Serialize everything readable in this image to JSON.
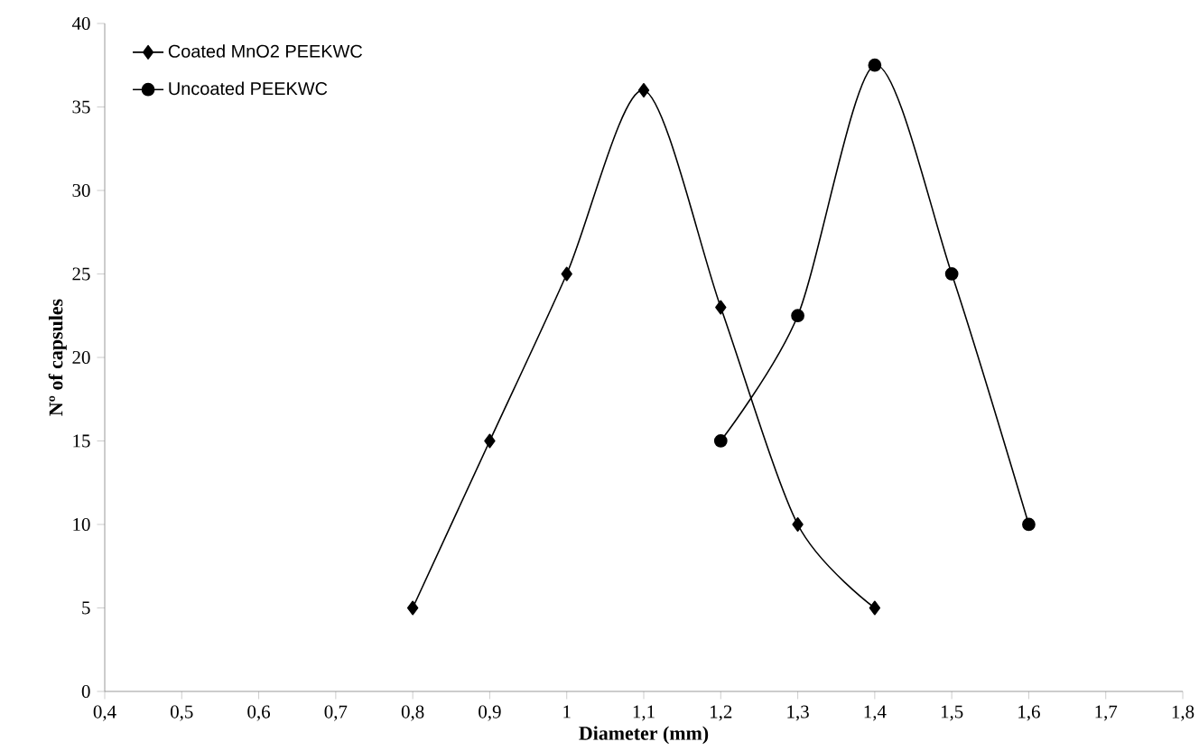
{
  "chart_data": {
    "type": "line",
    "xlabel": "Diameter (mm)",
    "ylabel": "Nº of capsules",
    "xlim": [
      0.4,
      1.8
    ],
    "ylim": [
      0,
      40
    ],
    "xticks": [
      {
        "value": 0.4,
        "label": "0,4"
      },
      {
        "value": 0.5,
        "label": "0,5"
      },
      {
        "value": 0.6,
        "label": "0,6"
      },
      {
        "value": 0.7,
        "label": "0,7"
      },
      {
        "value": 0.8,
        "label": "0,8"
      },
      {
        "value": 0.9,
        "label": "0,9"
      },
      1,
      {
        "value": 1.1,
        "label": "1,1"
      },
      {
        "value": 1.2,
        "label": "1,2"
      },
      {
        "value": 1.3,
        "label": "1,3"
      },
      {
        "value": 1.4,
        "label": "1,4"
      },
      {
        "value": 1.5,
        "label": "1,5"
      },
      {
        "value": 1.6,
        "label": "1,6"
      },
      {
        "value": 1.7,
        "label": "1,7"
      },
      {
        "value": 1.8,
        "label": "1,8"
      }
    ],
    "yticks": [
      0,
      5,
      10,
      15,
      20,
      25,
      30,
      35,
      40
    ],
    "grid": false,
    "legend": "top left",
    "series": [
      {
        "name": "Coated MnO2 PEEKWC",
        "color": "#000000",
        "marker": "diamond",
        "x": [
          0.8,
          0.9,
          1.0,
          1.1,
          1.2,
          1.3,
          1.4
        ],
        "values": [
          5,
          15,
          25,
          36,
          23,
          10,
          5
        ]
      },
      {
        "name": "Uncoated PEEKWC",
        "color": "#000000",
        "marker": "circle",
        "x": [
          1.2,
          1.3,
          1.4,
          1.5,
          1.6
        ],
        "values": [
          15,
          22.5,
          37.5,
          25,
          10
        ]
      }
    ]
  }
}
